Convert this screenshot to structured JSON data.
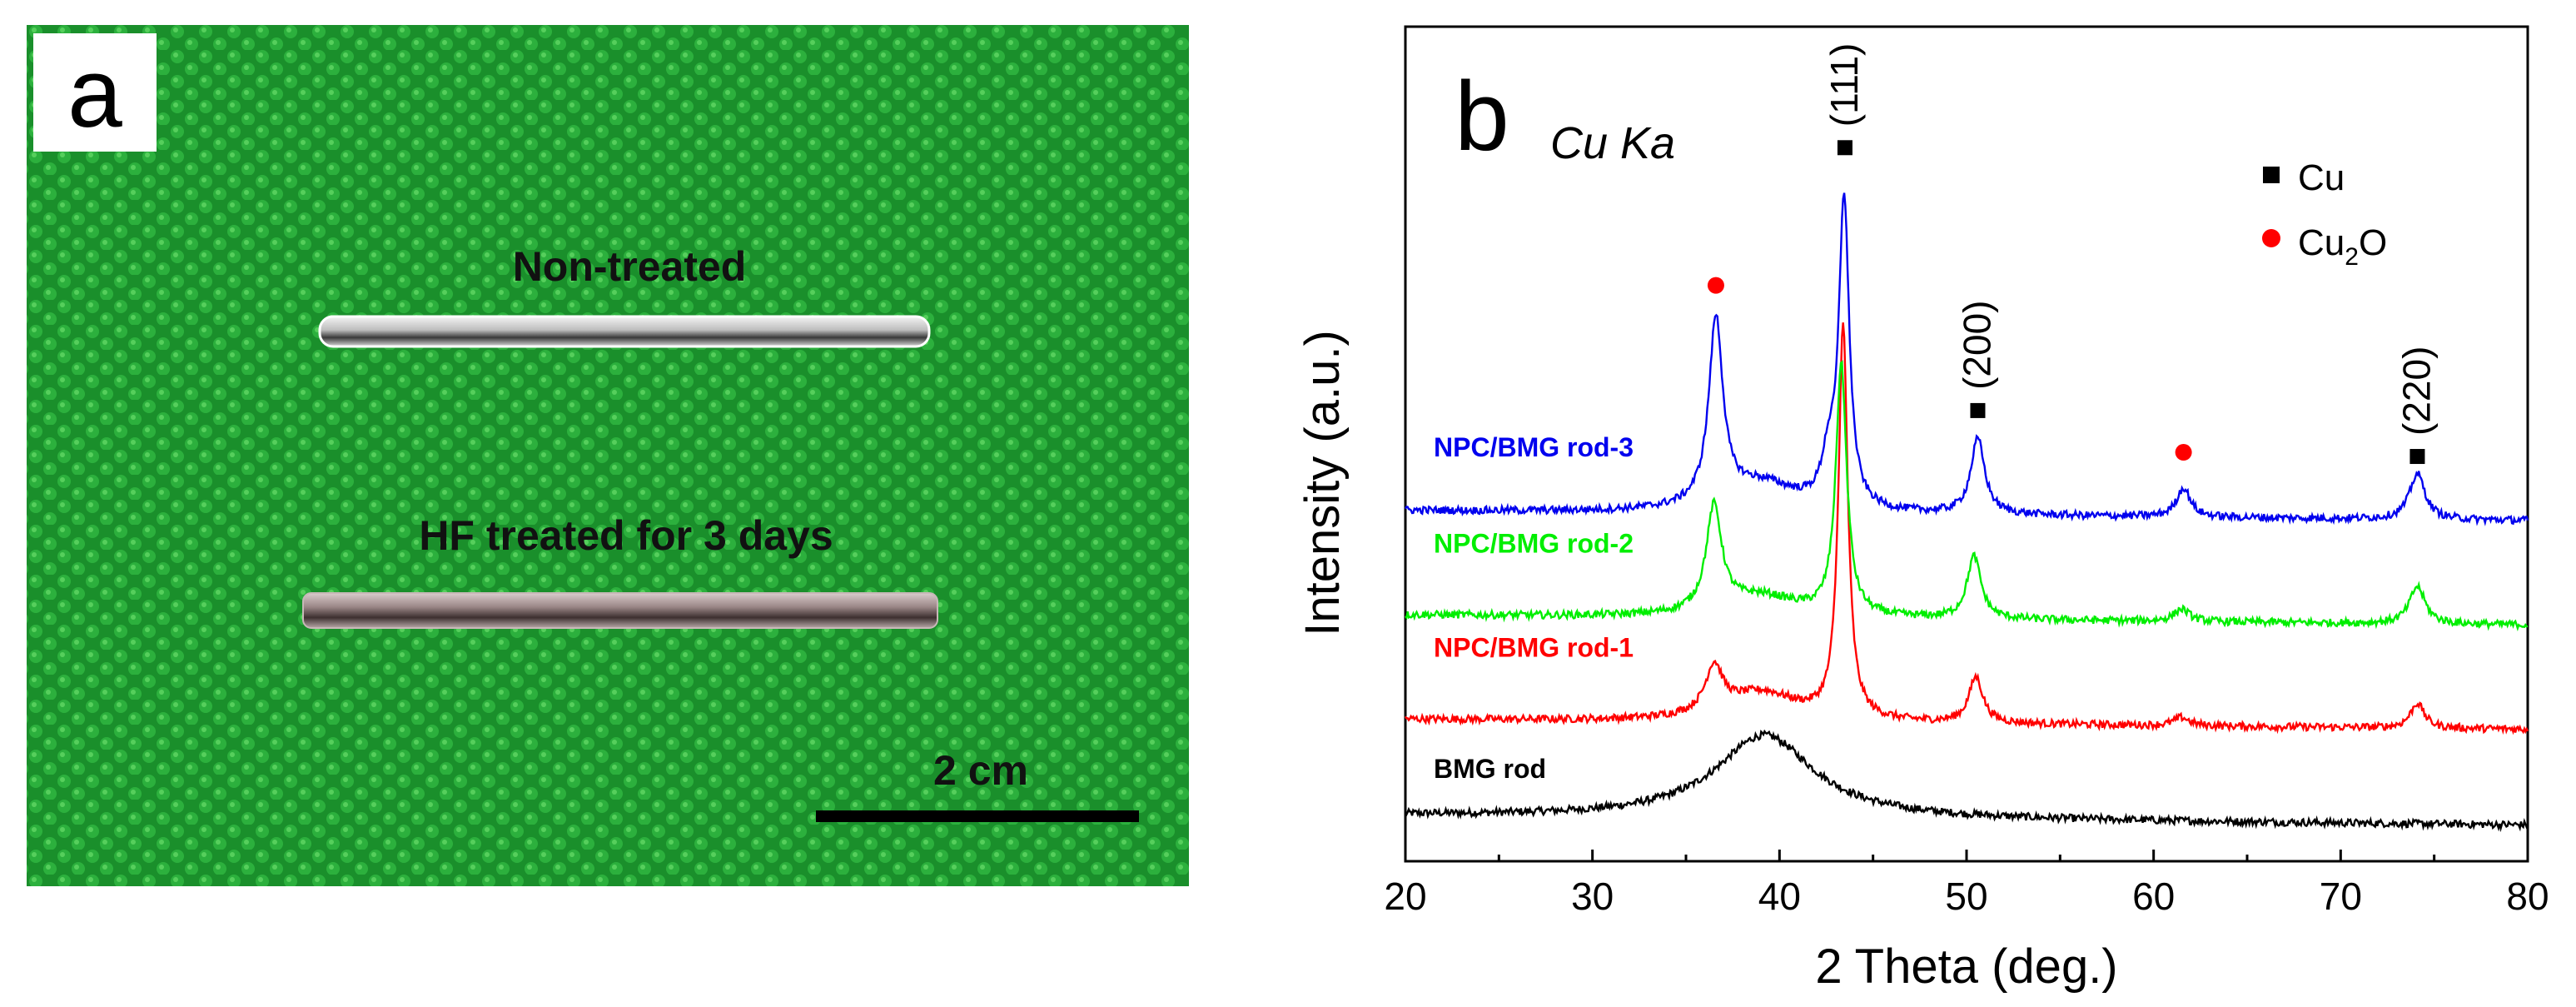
{
  "panel_a": {
    "label": "a",
    "rod_top_label": "Non-treated",
    "rod_bottom_label": "HF treated for 3 days",
    "scale_bar_label": "2 cm",
    "background_color": "#1f9a30",
    "rod_top_color": "#d8d8d8",
    "rod_bottom_color": "#8e7a7a"
  },
  "panel_b": {
    "label": "b",
    "radiation_label": "Cu Ka",
    "legend": [
      {
        "marker": "square",
        "label": "Cu",
        "color": "#000000"
      },
      {
        "marker": "circle",
        "label_main": "Cu",
        "label_sub": "2",
        "label_tail": "O",
        "color": "#ff0000"
      }
    ],
    "peak_labels": [
      "(111)",
      "(200)",
      "(220)"
    ]
  },
  "chart_data": {
    "type": "line",
    "title": "",
    "xlabel": "2 Theta (deg.)",
    "ylabel": "Intensity (a.u.)",
    "xlim": [
      20,
      80
    ],
    "ylim": [
      0,
      10
    ],
    "x_ticks": [
      20,
      30,
      40,
      50,
      60,
      70,
      80
    ],
    "y_ticks": [],
    "grid": false,
    "legend_placement": "top-right",
    "series": [
      {
        "name": "BMG rod",
        "color": "#000000",
        "baseline": 0.55,
        "peaks": [
          {
            "x": 39.2,
            "h": 1.0,
            "w": 3.2
          }
        ]
      },
      {
        "name": "NPC/BMG rod-1",
        "color": "#ff0000",
        "baseline": 1.7,
        "peaks": [
          {
            "x": 36.5,
            "h": 0.55,
            "w": 0.55
          },
          {
            "x": 39.0,
            "h": 0.35,
            "w": 2.5
          },
          {
            "x": 43.4,
            "h": 4.7,
            "w": 0.3
          },
          {
            "x": 50.5,
            "h": 0.55,
            "w": 0.45
          },
          {
            "x": 61.5,
            "h": 0.1,
            "w": 0.5
          },
          {
            "x": 74.1,
            "h": 0.3,
            "w": 0.45
          }
        ]
      },
      {
        "name": "NPC/BMG rod-2",
        "color": "#00ee00",
        "baseline": 2.95,
        "peaks": [
          {
            "x": 36.5,
            "h": 1.25,
            "w": 0.5
          },
          {
            "x": 39.0,
            "h": 0.25,
            "w": 2.5
          },
          {
            "x": 43.3,
            "h": 3.0,
            "w": 0.35
          },
          {
            "x": 50.4,
            "h": 0.75,
            "w": 0.45
          },
          {
            "x": 61.5,
            "h": 0.15,
            "w": 0.5
          },
          {
            "x": 74.1,
            "h": 0.45,
            "w": 0.5
          }
        ]
      },
      {
        "name": "NPC/BMG rod-3",
        "color": "#0000ee",
        "baseline": 4.2,
        "peaks": [
          {
            "x": 36.6,
            "h": 2.2,
            "w": 0.45
          },
          {
            "x": 39.0,
            "h": 0.35,
            "w": 2.5
          },
          {
            "x": 42.6,
            "h": 0.5,
            "w": 0.4
          },
          {
            "x": 43.45,
            "h": 3.7,
            "w": 0.33
          },
          {
            "x": 50.6,
            "h": 0.9,
            "w": 0.45
          },
          {
            "x": 61.6,
            "h": 0.35,
            "w": 0.45
          },
          {
            "x": 74.1,
            "h": 0.55,
            "w": 0.5
          }
        ]
      }
    ],
    "peak_markers": [
      {
        "x": 36.6,
        "y": 6.9,
        "type": "Cu2O"
      },
      {
        "x": 43.5,
        "y": 8.55,
        "type": "Cu"
      },
      {
        "x": 50.6,
        "y": 5.4,
        "type": "Cu"
      },
      {
        "x": 61.6,
        "y": 4.9,
        "type": "Cu2O"
      },
      {
        "x": 74.1,
        "y": 4.85,
        "type": "Cu"
      }
    ],
    "peak_label_anchors": [
      {
        "text_index": 0,
        "x": 43.5,
        "y": 8.8
      },
      {
        "text_index": 1,
        "x": 50.6,
        "y": 5.65
      },
      {
        "text_index": 2,
        "x": 74.1,
        "y": 5.1
      }
    ]
  }
}
